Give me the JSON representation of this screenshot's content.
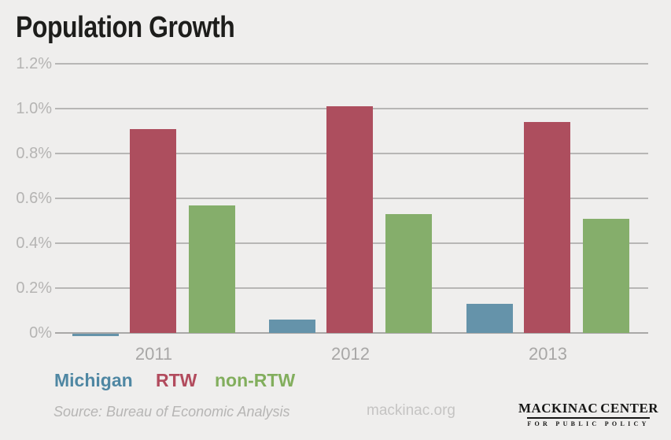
{
  "title": "Population Growth",
  "chart_data": {
    "type": "bar",
    "categories": [
      "2011",
      "2012",
      "2013"
    ],
    "series": [
      {
        "name": "Michigan",
        "color": "#6593aa",
        "values": [
          -0.01,
          0.06,
          0.13
        ]
      },
      {
        "name": "RTW",
        "color": "#ad4e5e",
        "values": [
          0.91,
          1.01,
          0.94
        ]
      },
      {
        "name": "non-RTW",
        "color": "#85ae6b",
        "values": [
          0.57,
          0.53,
          0.51
        ]
      }
    ],
    "title": "Population Growth",
    "xlabel": "",
    "ylabel": "",
    "y_ticks": [
      "1.2%",
      "1.0%",
      "0.8%",
      "0.6%",
      "0.4%",
      "0.2%",
      "0%"
    ],
    "y_tick_values": [
      1.2,
      1.0,
      0.8,
      0.6,
      0.4,
      0.2,
      0
    ],
    "ylim": [
      -0.05,
      1.25
    ],
    "grid": true,
    "legend_position": "bottom-left"
  },
  "legend": {
    "items": [
      {
        "label": "Michigan",
        "color": "#4f87a3"
      },
      {
        "label": "RTW",
        "color": "#b24b5d"
      },
      {
        "label": "non-RTW",
        "color": "#82ae5d"
      }
    ]
  },
  "footer": {
    "source": "Source: Bureau of Economic Analysis",
    "website": "mackinac.org",
    "logo": {
      "word_left": "MACKINAC",
      "word_right": "CENTER",
      "tagline": "FOR PUBLIC POLICY",
      "accent_color": "#1b7f93"
    }
  }
}
